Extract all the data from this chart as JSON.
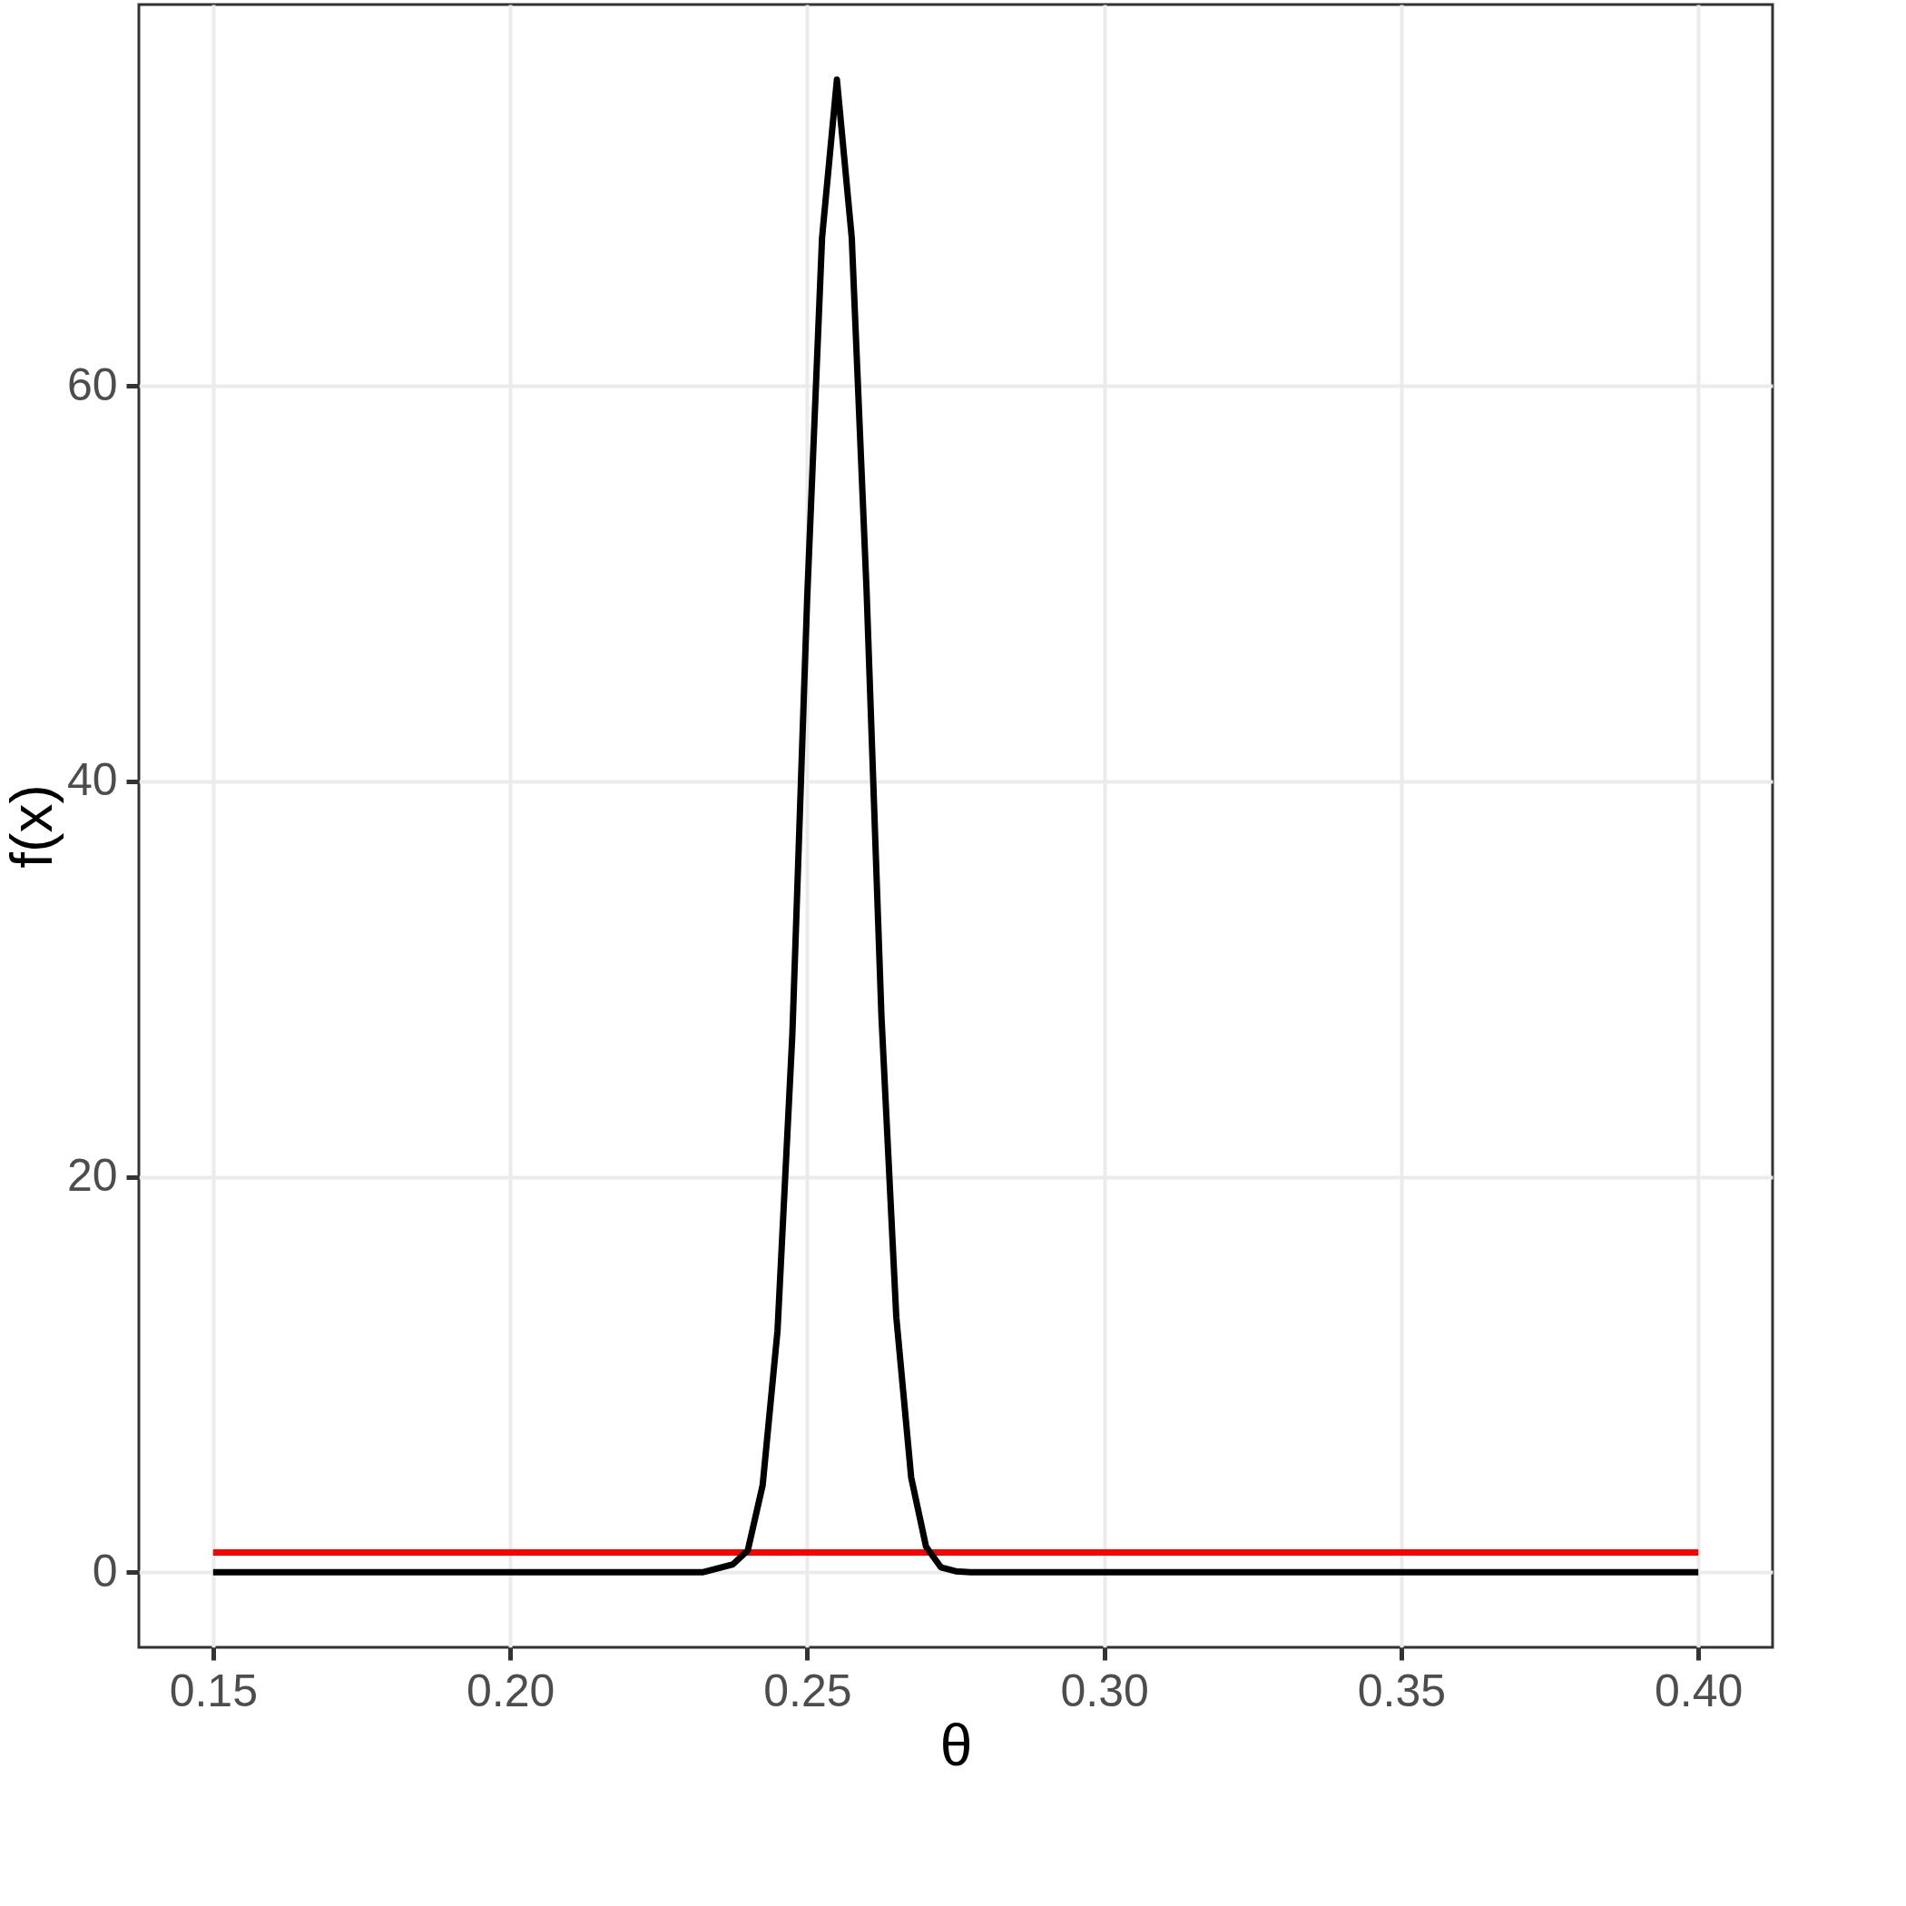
{
  "chart_data": {
    "type": "line",
    "xlabel": "θ",
    "ylabel": "f(x)",
    "series": [
      {
        "color": "#ff0000",
        "x": [
          0.15,
          0.4
        ],
        "values": [
          1,
          1
        ]
      },
      {
        "color": "#000000",
        "x": [
          0.15,
          0.175,
          0.2,
          0.225,
          0.2325,
          0.235,
          0.2375,
          0.24,
          0.2425,
          0.245,
          0.2475,
          0.25,
          0.2525,
          0.255,
          0.2575,
          0.26,
          0.2625,
          0.265,
          0.2675,
          0.27,
          0.2725,
          0.275,
          0.2775,
          0.3,
          0.35,
          0.4
        ],
        "values": [
          0,
          0,
          0,
          0,
          0,
          0.2,
          0.4,
          1.1,
          4.4,
          12.2,
          27.2,
          49.3,
          67.5,
          75.5,
          67.5,
          49.6,
          28.1,
          12.9,
          4.8,
          1.3,
          0.25,
          0.05,
          0,
          0,
          0,
          0
        ]
      }
    ],
    "xlim": [
      0.1375,
      0.4125
    ],
    "ylim": [
      -3.8,
      79.3
    ],
    "xticks": [
      {
        "value": 0.15,
        "label": "0.15"
      },
      {
        "value": 0.2,
        "label": "0.20"
      },
      {
        "value": 0.25,
        "label": "0.25"
      },
      {
        "value": 0.3,
        "label": "0.30"
      },
      {
        "value": 0.35,
        "label": "0.35"
      },
      {
        "value": 0.4,
        "label": "0.40"
      }
    ],
    "yticks": [
      0,
      20,
      40,
      60
    ],
    "grid": true,
    "legend": false,
    "marker": "none",
    "line_style": "solid"
  }
}
